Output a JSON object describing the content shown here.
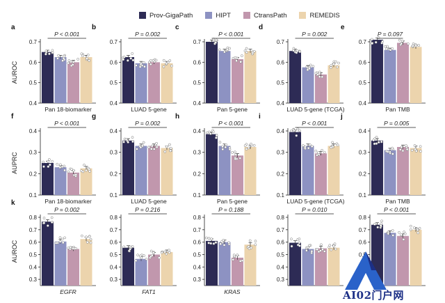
{
  "legend": [
    {
      "label": "Prov-GigaPath",
      "color": "#2d2b55"
    },
    {
      "label": "HIPT",
      "color": "#8d92c2"
    },
    {
      "label": "CtransPath",
      "color": "#c197ad"
    },
    {
      "label": "REMEDIS",
      "color": "#ecd4ad"
    }
  ],
  "watermark_text": "AI02门户网",
  "chart_data": [
    {
      "type": "bar",
      "panel_letter": "a",
      "ylabel": "AUROC",
      "ylim": [
        0.4,
        0.7
      ],
      "yticks": [
        0.4,
        0.5,
        0.6,
        0.7
      ],
      "xlabel": "Pan 18-biomarker",
      "xlabel_italic": false,
      "p_text": "P < 0.001",
      "series": [
        {
          "name": "Prov-GigaPath",
          "value": 0.65
        },
        {
          "name": "HIPT",
          "value": 0.625
        },
        {
          "name": "CtransPath",
          "value": 0.6
        },
        {
          "name": "REMEDIS",
          "value": 0.625
        }
      ]
    },
    {
      "type": "bar",
      "panel_letter": "b",
      "ylabel": "",
      "ylim": [
        0.4,
        0.7
      ],
      "yticks": [
        0.4,
        0.5,
        0.6,
        0.7
      ],
      "xlabel": "LUAD 5-gene",
      "xlabel_italic": false,
      "p_text": "P = 0.002",
      "series": [
        {
          "name": "Prov-GigaPath",
          "value": 0.625
        },
        {
          "name": "HIPT",
          "value": 0.595
        },
        {
          "name": "CtransPath",
          "value": 0.6
        },
        {
          "name": "REMEDIS",
          "value": 0.595
        }
      ]
    },
    {
      "type": "bar",
      "panel_letter": "c",
      "ylabel": "",
      "ylim": [
        0.4,
        0.7
      ],
      "yticks": [
        0.4,
        0.5,
        0.6,
        0.7
      ],
      "xlabel": "Pan 5-gene",
      "xlabel_italic": false,
      "p_text": "P < 0.001",
      "series": [
        {
          "name": "Prov-GigaPath",
          "value": 0.7
        },
        {
          "name": "HIPT",
          "value": 0.655
        },
        {
          "name": "CtransPath",
          "value": 0.615
        },
        {
          "name": "REMEDIS",
          "value": 0.655
        }
      ]
    },
    {
      "type": "bar",
      "panel_letter": "d",
      "ylabel": "",
      "ylim": [
        0.4,
        0.7
      ],
      "yticks": [
        0.4,
        0.5,
        0.6,
        0.7
      ],
      "xlabel": "LUAD 5-gene (TCGA)",
      "xlabel_italic": false,
      "p_text": "P = 0.002",
      "series": [
        {
          "name": "Prov-GigaPath",
          "value": 0.655
        },
        {
          "name": "HIPT",
          "value": 0.575
        },
        {
          "name": "CtransPath",
          "value": 0.54
        },
        {
          "name": "REMEDIS",
          "value": 0.585
        }
      ]
    },
    {
      "type": "bar",
      "panel_letter": "e",
      "ylabel": "",
      "ylim": [
        0.4,
        0.7
      ],
      "yticks": [
        0.4,
        0.5,
        0.6,
        0.7
      ],
      "xlabel": "Pan TMB",
      "xlabel_italic": false,
      "p_text": "P = 0.097",
      "series": [
        {
          "name": "Prov-GigaPath",
          "value": 0.71
        },
        {
          "name": "HIPT",
          "value": 0.66
        },
        {
          "name": "CtransPath",
          "value": 0.695
        },
        {
          "name": "REMEDIS",
          "value": 0.675
        }
      ]
    },
    {
      "type": "bar",
      "panel_letter": "f",
      "ylabel": "AUPRC",
      "ylim": [
        0.1,
        0.4
      ],
      "yticks": [
        0.1,
        0.2,
        0.3,
        0.4
      ],
      "xlabel": "Pan 18-biomarker",
      "xlabel_italic": false,
      "p_text": "P < 0.001",
      "series": [
        {
          "name": "Prov-GigaPath",
          "value": 0.25
        },
        {
          "name": "HIPT",
          "value": 0.23
        },
        {
          "name": "CtransPath",
          "value": 0.205
        },
        {
          "name": "REMEDIS",
          "value": 0.225
        }
      ]
    },
    {
      "type": "bar",
      "panel_letter": "g",
      "ylabel": "",
      "ylim": [
        0.1,
        0.4
      ],
      "yticks": [
        0.1,
        0.2,
        0.3,
        0.4
      ],
      "xlabel": "LUAD 5-gene",
      "xlabel_italic": false,
      "p_text": "P = 0.002",
      "series": [
        {
          "name": "Prov-GigaPath",
          "value": 0.355
        },
        {
          "name": "HIPT",
          "value": 0.33
        },
        {
          "name": "CtransPath",
          "value": 0.33
        },
        {
          "name": "REMEDIS",
          "value": 0.32
        }
      ]
    },
    {
      "type": "bar",
      "panel_letter": "h",
      "ylabel": "",
      "ylim": [
        0.1,
        0.4
      ],
      "yticks": [
        0.1,
        0.2,
        0.3,
        0.4
      ],
      "xlabel": "Pan 5-gene",
      "xlabel_italic": false,
      "p_text": "P < 0.001",
      "series": [
        {
          "name": "Prov-GigaPath",
          "value": 0.385
        },
        {
          "name": "HIPT",
          "value": 0.33
        },
        {
          "name": "CtransPath",
          "value": 0.285
        },
        {
          "name": "REMEDIS",
          "value": 0.325
        }
      ]
    },
    {
      "type": "bar",
      "panel_letter": "i",
      "ylabel": "",
      "ylim": [
        0.1,
        0.4
      ],
      "yticks": [
        0.1,
        0.2,
        0.3,
        0.4
      ],
      "xlabel": "LUAD 5-gene (TCGA)",
      "xlabel_italic": false,
      "p_text": "P < 0.001",
      "series": [
        {
          "name": "Prov-GigaPath",
          "value": 0.395
        },
        {
          "name": "HIPT",
          "value": 0.33
        },
        {
          "name": "CtransPath",
          "value": 0.295
        },
        {
          "name": "REMEDIS",
          "value": 0.33
        }
      ]
    },
    {
      "type": "bar",
      "panel_letter": "j",
      "ylabel": "",
      "ylim": [
        0.1,
        0.4
      ],
      "yticks": [
        0.1,
        0.2,
        0.3,
        0.4
      ],
      "xlabel": "Pan TMB",
      "xlabel_italic": false,
      "p_text": "P = 0.005",
      "series": [
        {
          "name": "Prov-GigaPath",
          "value": 0.355
        },
        {
          "name": "HIPT",
          "value": 0.31
        },
        {
          "name": "CtransPath",
          "value": 0.325
        },
        {
          "name": "REMEDIS",
          "value": 0.32
        }
      ]
    },
    {
      "type": "bar",
      "panel_letter": "k",
      "ylabel": "AUROC",
      "ylim": [
        0.25,
        0.8
      ],
      "yticks": [
        0.3,
        0.4,
        0.5,
        0.6,
        0.7,
        0.8
      ],
      "xlabel": "EGFR",
      "xlabel_italic": true,
      "p_text": "P = 0.002",
      "series": [
        {
          "name": "Prov-GigaPath",
          "value": 0.765
        },
        {
          "name": "HIPT",
          "value": 0.605
        },
        {
          "name": "CtransPath",
          "value": 0.545
        },
        {
          "name": "REMEDIS",
          "value": 0.625
        }
      ]
    },
    {
      "type": "bar",
      "panel_letter": "",
      "ylabel": "",
      "ylim": [
        0.25,
        0.8
      ],
      "yticks": [
        0.3,
        0.4,
        0.5,
        0.6,
        0.7,
        0.8
      ],
      "xlabel": "FAT1",
      "xlabel_italic": true,
      "p_text": "P = 0.216",
      "series": [
        {
          "name": "Prov-GigaPath",
          "value": 0.555
        },
        {
          "name": "HIPT",
          "value": 0.465
        },
        {
          "name": "CtransPath",
          "value": 0.5
        },
        {
          "name": "REMEDIS",
          "value": 0.52
        }
      ]
    },
    {
      "type": "bar",
      "panel_letter": "",
      "ylabel": "",
      "ylim": [
        0.25,
        0.8
      ],
      "yticks": [
        0.3,
        0.4,
        0.5,
        0.6,
        0.7,
        0.8
      ],
      "xlabel": "KRAS",
      "xlabel_italic": true,
      "p_text": "P = 0.188",
      "series": [
        {
          "name": "Prov-GigaPath",
          "value": 0.61
        },
        {
          "name": "HIPT",
          "value": 0.6
        },
        {
          "name": "CtransPath",
          "value": 0.475
        },
        {
          "name": "REMEDIS",
          "value": 0.58
        }
      ]
    },
    {
      "type": "bar",
      "panel_letter": "",
      "ylabel": "",
      "ylim": [
        0.25,
        0.8
      ],
      "yticks": [
        0.3,
        0.4,
        0.5,
        0.6,
        0.7,
        0.8
      ],
      "xlabel": "",
      "xlabel_italic": true,
      "p_text": "P = 0.010",
      "series": [
        {
          "name": "Prov-GigaPath",
          "value": 0.595
        },
        {
          "name": "HIPT",
          "value": 0.545
        },
        {
          "name": "CtransPath",
          "value": 0.55
        },
        {
          "name": "REMEDIS",
          "value": 0.555
        }
      ]
    },
    {
      "type": "bar",
      "panel_letter": "",
      "ylabel": "",
      "ylim": [
        0.25,
        0.8
      ],
      "yticks": [
        0.3,
        0.4,
        0.5,
        0.6,
        0.7,
        0.8
      ],
      "xlabel": "",
      "xlabel_italic": true,
      "p_text": "P < 0.001",
      "series": [
        {
          "name": "Prov-GigaPath",
          "value": 0.74
        },
        {
          "name": "HIPT",
          "value": 0.675
        },
        {
          "name": "CtransPath",
          "value": 0.65
        },
        {
          "name": "REMEDIS",
          "value": 0.7
        }
      ]
    }
  ]
}
